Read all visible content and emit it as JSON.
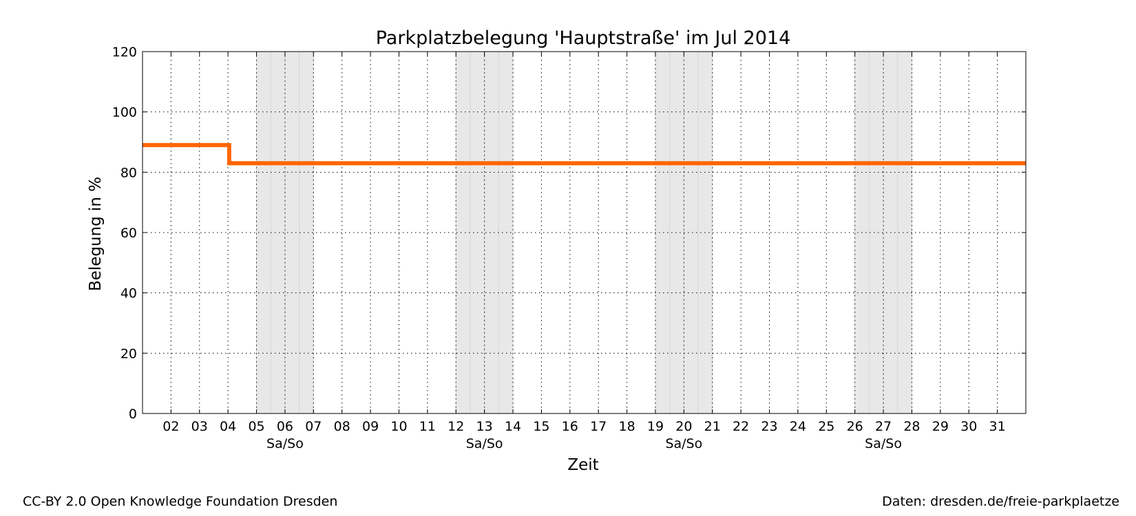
{
  "chart_data": {
    "type": "line",
    "title": "Parkplatzbelegung 'Hauptstraße' im Jul 2014",
    "xlabel": "Zeit",
    "ylabel": "Belegung in %",
    "xlim": [
      "2014-07-01",
      "2014-08-01"
    ],
    "ylim": [
      0,
      120
    ],
    "yticks": [
      0,
      20,
      40,
      60,
      80,
      100,
      120
    ],
    "xticks": [
      {
        "date": "2014-07-02",
        "label": "02"
      },
      {
        "date": "2014-07-03",
        "label": "03"
      },
      {
        "date": "2014-07-04",
        "label": "04"
      },
      {
        "date": "2014-07-05",
        "label": "05"
      },
      {
        "date": "2014-07-06",
        "label": "06"
      },
      {
        "date": "2014-07-07",
        "label": "07"
      },
      {
        "date": "2014-07-08",
        "label": "08"
      },
      {
        "date": "2014-07-09",
        "label": "09"
      },
      {
        "date": "2014-07-10",
        "label": "10"
      },
      {
        "date": "2014-07-11",
        "label": "11"
      },
      {
        "date": "2014-07-12",
        "label": "12"
      },
      {
        "date": "2014-07-13",
        "label": "13"
      },
      {
        "date": "2014-07-14",
        "label": "14"
      },
      {
        "date": "2014-07-15",
        "label": "15"
      },
      {
        "date": "2014-07-16",
        "label": "16"
      },
      {
        "date": "2014-07-17",
        "label": "17"
      },
      {
        "date": "2014-07-18",
        "label": "18"
      },
      {
        "date": "2014-07-19",
        "label": "19"
      },
      {
        "date": "2014-07-20",
        "label": "20"
      },
      {
        "date": "2014-07-21",
        "label": "21"
      },
      {
        "date": "2014-07-22",
        "label": "22"
      },
      {
        "date": "2014-07-23",
        "label": "23"
      },
      {
        "date": "2014-07-24",
        "label": "24"
      },
      {
        "date": "2014-07-25",
        "label": "25"
      },
      {
        "date": "2014-07-26",
        "label": "26"
      },
      {
        "date": "2014-07-27",
        "label": "27"
      },
      {
        "date": "2014-07-28",
        "label": "28"
      },
      {
        "date": "2014-07-29",
        "label": "29"
      },
      {
        "date": "2014-07-30",
        "label": "30"
      },
      {
        "date": "2014-07-31",
        "label": "31"
      }
    ],
    "weekends": [
      {
        "start": "2014-07-05",
        "end": "2014-07-07",
        "label": "Sa/So"
      },
      {
        "start": "2014-07-12",
        "end": "2014-07-14",
        "label": "Sa/So"
      },
      {
        "start": "2014-07-19",
        "end": "2014-07-21",
        "label": "Sa/So"
      },
      {
        "start": "2014-07-26",
        "end": "2014-07-28",
        "label": "Sa/So"
      }
    ],
    "grid": true,
    "series": [
      {
        "step": true,
        "color": "#ff6600",
        "points": [
          {
            "x": "2014-07-01 00:00",
            "y": 89
          },
          {
            "x": "2014-07-04 01:00",
            "y": 89
          },
          {
            "x": "2014-07-04 01:00",
            "y": 83
          },
          {
            "x": "2014-08-01 00:00",
            "y": 83
          }
        ]
      }
    ],
    "colors": {
      "line": "#ff6600",
      "weekend_shade": "#e8e8e8",
      "weekend_band_line": "#d6d6d6"
    }
  },
  "footer": {
    "license": "CC-BY 2.0 Open Knowledge Foundation Dresden",
    "source": "Daten: dresden.de/freie-parkplaetze"
  }
}
